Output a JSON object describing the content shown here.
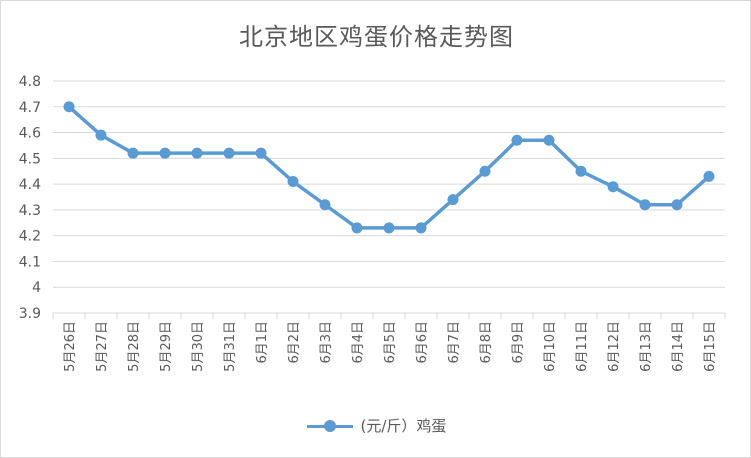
{
  "chart_data": {
    "type": "line",
    "title": "北京地区鸡蛋价格走势图",
    "xlabel": "",
    "ylabel": "",
    "categories": [
      "5月26日",
      "5月27日",
      "5月28日",
      "5月29日",
      "5月30日",
      "5月31日",
      "6月1日",
      "6月2日",
      "6月3日",
      "6月4日",
      "6月5日",
      "6月6日",
      "6月7日",
      "6月8日",
      "6月9日",
      "6月10日",
      "6月11日",
      "6月12日",
      "6月13日",
      "6月14日",
      "6月15日"
    ],
    "series": [
      {
        "name": "(元/斤）鸡蛋",
        "values": [
          4.7,
          4.59,
          4.52,
          4.52,
          4.52,
          4.52,
          4.52,
          4.41,
          4.32,
          4.23,
          4.23,
          4.23,
          4.34,
          4.45,
          4.57,
          4.57,
          4.45,
          4.39,
          4.32,
          4.32,
          4.43
        ]
      }
    ],
    "yticks": [
      "3.9",
      "4",
      "4.1",
      "4.2",
      "4.3",
      "4.4",
      "4.5",
      "4.6",
      "4.7",
      "4.8"
    ],
    "ylim": [
      3.9,
      4.8
    ],
    "grid": true,
    "legend": "bottom",
    "colors": {
      "line": "#5b9bd5",
      "grid": "#d9d9d9",
      "text": "#595959"
    }
  }
}
